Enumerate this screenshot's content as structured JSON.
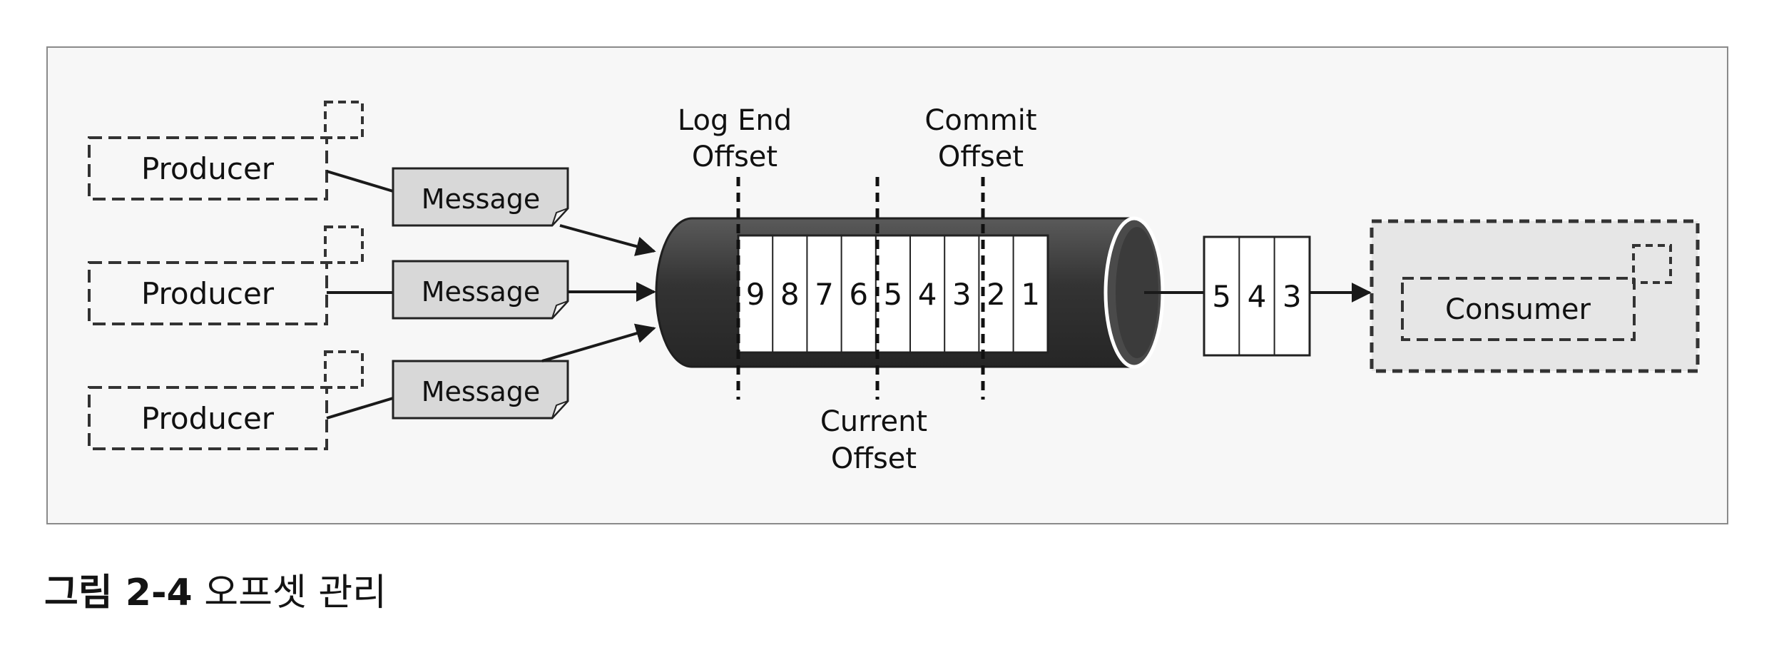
{
  "producers": [
    {
      "label": "Producer",
      "message": "Message"
    },
    {
      "label": "Producer",
      "message": "Message"
    },
    {
      "label": "Producer",
      "message": "Message"
    }
  ],
  "log_cells": [
    "9",
    "8",
    "7",
    "6",
    "5",
    "4",
    "3",
    "2",
    "1"
  ],
  "offsets": {
    "log_end": [
      "Log End",
      "Offset"
    ],
    "commit": [
      "Commit",
      "Offset"
    ],
    "current": [
      "Current",
      "Offset"
    ]
  },
  "fetched": [
    "5",
    "4",
    "3"
  ],
  "consumer": {
    "label": "Consumer"
  },
  "caption": {
    "prefix": "그림 2-4",
    "title": "오프셋 관리"
  },
  "colors": {
    "frame_bg": "#f6f6f6",
    "note_fill": "#d9d9d9",
    "tube_dark": "#3c3c3c",
    "consumer_bg": "#e5e5e5",
    "line": "#1a1a1a"
  }
}
